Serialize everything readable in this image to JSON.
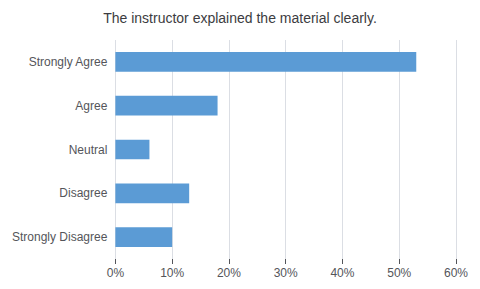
{
  "chart_data": {
    "type": "bar",
    "orientation": "horizontal",
    "title": "The instructor explained the material clearly.",
    "categories": [
      "Strongly Disagree",
      "Disagree",
      "Neutral",
      "Agree",
      "Strongly Agree"
    ],
    "values": [
      0.1,
      0.13,
      0.06,
      0.18,
      0.53
    ],
    "color": "#5B9BD5",
    "xlim": [
      0,
      0.6
    ],
    "xticks": [
      {
        "value": 0.0,
        "label": "0%"
      },
      {
        "value": 0.1,
        "label": "10%"
      },
      {
        "value": 0.2,
        "label": "20%"
      },
      {
        "value": 0.3,
        "label": "30%"
      },
      {
        "value": 0.4,
        "label": "40%"
      },
      {
        "value": 0.5,
        "label": "50%"
      },
      {
        "value": 0.6,
        "label": "60%"
      }
    ],
    "grid": true
  }
}
